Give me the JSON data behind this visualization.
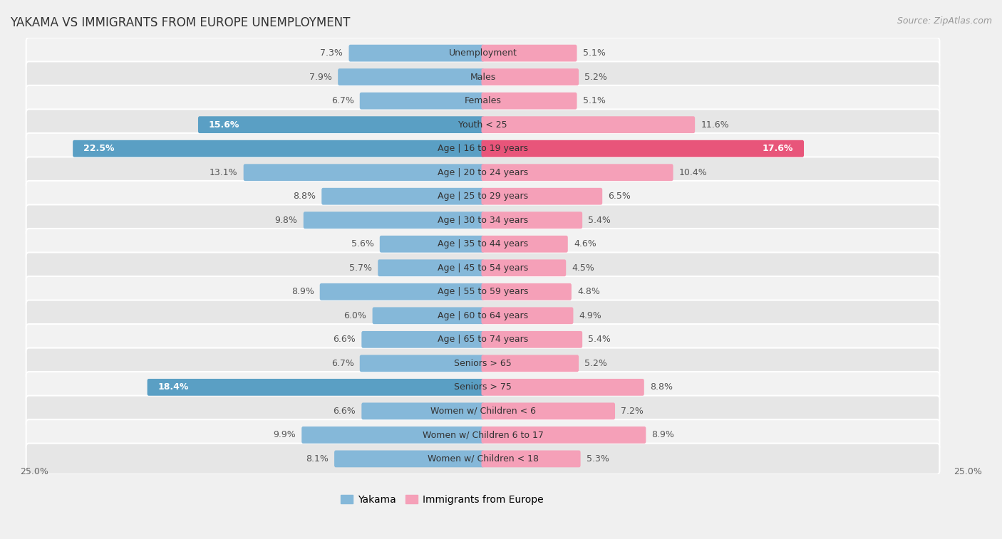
{
  "title": "YAKAMA VS IMMIGRANTS FROM EUROPE UNEMPLOYMENT",
  "source": "Source: ZipAtlas.com",
  "categories": [
    "Unemployment",
    "Males",
    "Females",
    "Youth < 25",
    "Age | 16 to 19 years",
    "Age | 20 to 24 years",
    "Age | 25 to 29 years",
    "Age | 30 to 34 years",
    "Age | 35 to 44 years",
    "Age | 45 to 54 years",
    "Age | 55 to 59 years",
    "Age | 60 to 64 years",
    "Age | 65 to 74 years",
    "Seniors > 65",
    "Seniors > 75",
    "Women w/ Children < 6",
    "Women w/ Children 6 to 17",
    "Women w/ Children < 18"
  ],
  "yakama_values": [
    7.3,
    7.9,
    6.7,
    15.6,
    22.5,
    13.1,
    8.8,
    9.8,
    5.6,
    5.7,
    8.9,
    6.0,
    6.6,
    6.7,
    18.4,
    6.6,
    9.9,
    8.1
  ],
  "europe_values": [
    5.1,
    5.2,
    5.1,
    11.6,
    17.6,
    10.4,
    6.5,
    5.4,
    4.6,
    4.5,
    4.8,
    4.9,
    5.4,
    5.2,
    8.8,
    7.2,
    8.9,
    5.3
  ],
  "yakama_color": "#85b8d9",
  "europe_color": "#f5a0b8",
  "yakama_color_highlight": "#5a9fc4",
  "europe_color_highlight": "#e8557a",
  "row_bg_light": "#f2f2f2",
  "row_bg_dark": "#e6e6e6",
  "bg_color": "#f0f0f0",
  "max_val": 25.0,
  "legend_yakama": "Yakama",
  "legend_europe": "Immigrants from Europe"
}
